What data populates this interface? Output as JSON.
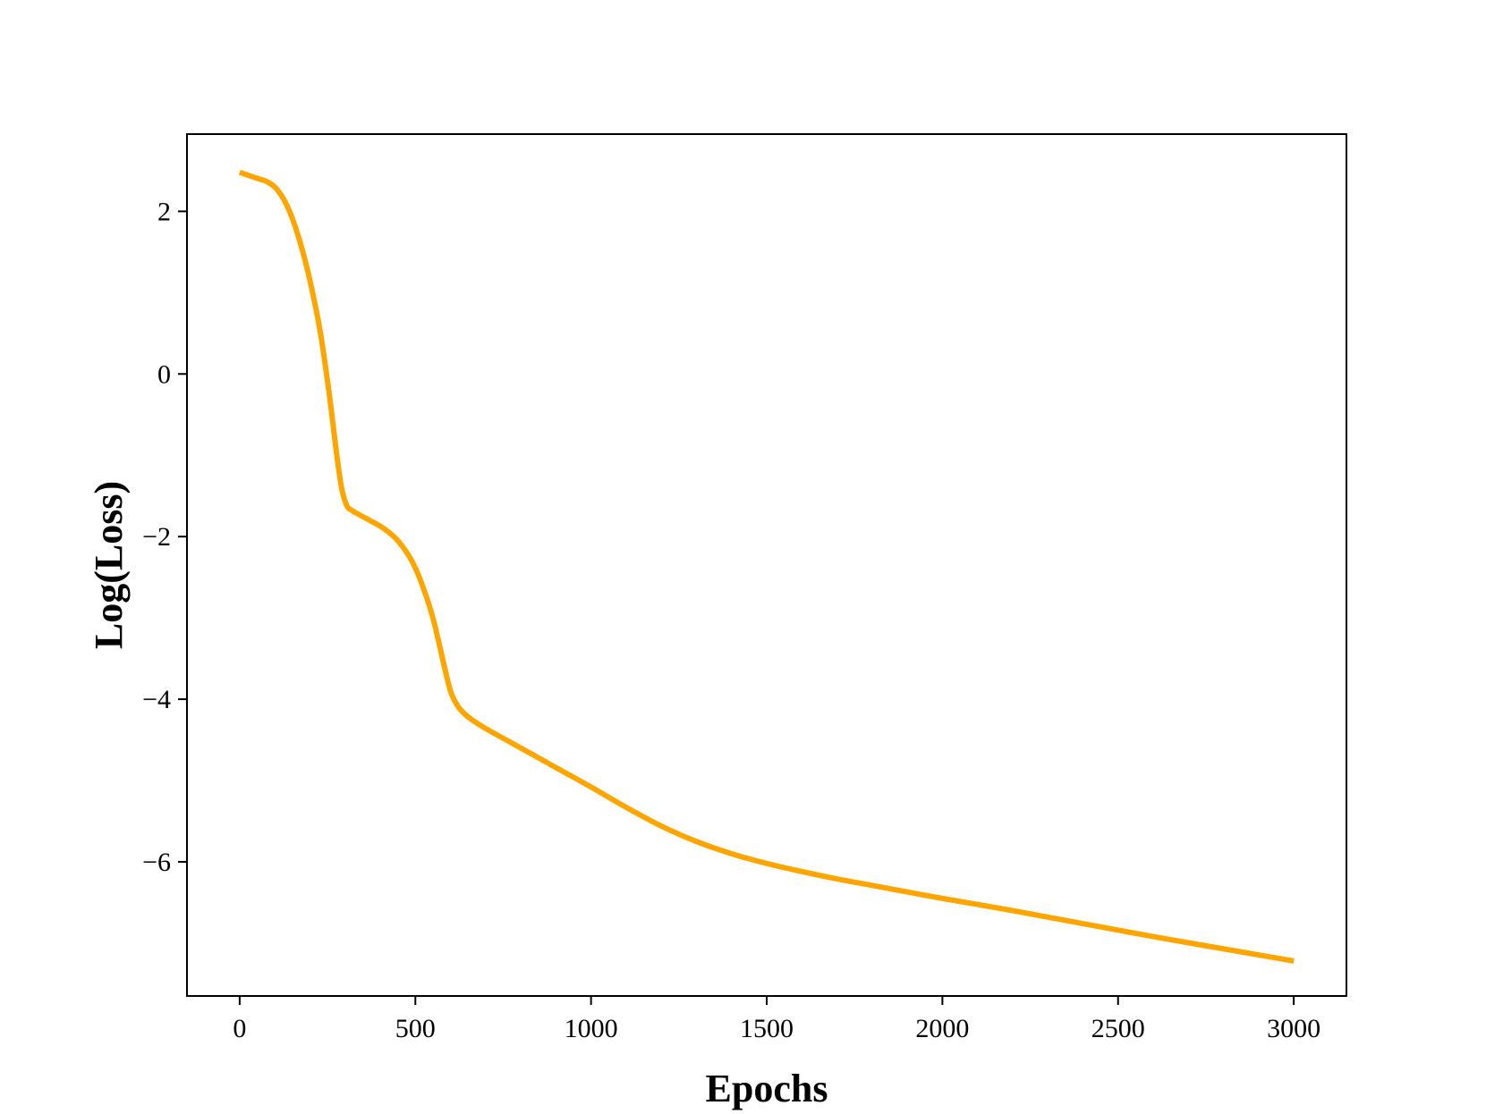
{
  "chart_data": {
    "type": "line",
    "title": "",
    "xlabel": "Epochs",
    "ylabel": "Log(Loss)",
    "xlim": [
      -150,
      3150
    ],
    "ylim": [
      -7.65,
      2.95
    ],
    "xticks": [
      0,
      500,
      1000,
      1500,
      2000,
      2500,
      3000
    ],
    "xtick_labels": [
      "0",
      "500",
      "1000",
      "1500",
      "2000",
      "2500",
      "3000"
    ],
    "yticks": [
      2,
      0,
      -2,
      -4,
      -6
    ],
    "ytick_labels": [
      "2",
      "0",
      "−2",
      "−4",
      "−6"
    ],
    "grid": false,
    "legend": "none",
    "colors": {
      "line": "#FFA500",
      "axes": "#000000"
    },
    "series": [
      {
        "x": [
          0,
          40,
          80,
          110,
          140,
          170,
          200,
          230,
          255,
          275,
          290,
          305,
          320,
          340,
          370,
          410,
          450,
          490,
          520,
          550,
          580,
          600,
          620,
          640,
          660,
          700,
          800,
          900,
          1000,
          1100,
          1200,
          1300,
          1400,
          1500,
          1600,
          1700,
          1800,
          2000,
          2200,
          2400,
          2600,
          2800,
          3000
        ],
        "y": [
          2.48,
          2.42,
          2.36,
          2.25,
          2.02,
          1.65,
          1.15,
          0.5,
          -0.25,
          -0.95,
          -1.4,
          -1.62,
          -1.68,
          -1.73,
          -1.8,
          -1.9,
          -2.05,
          -2.3,
          -2.6,
          -3.0,
          -3.55,
          -3.9,
          -4.08,
          -4.18,
          -4.25,
          -4.36,
          -4.6,
          -4.84,
          -5.08,
          -5.33,
          -5.56,
          -5.75,
          -5.9,
          -6.02,
          -6.12,
          -6.21,
          -6.29,
          -6.45,
          -6.6,
          -6.76,
          -6.92,
          -7.07,
          -7.22
        ]
      }
    ]
  }
}
